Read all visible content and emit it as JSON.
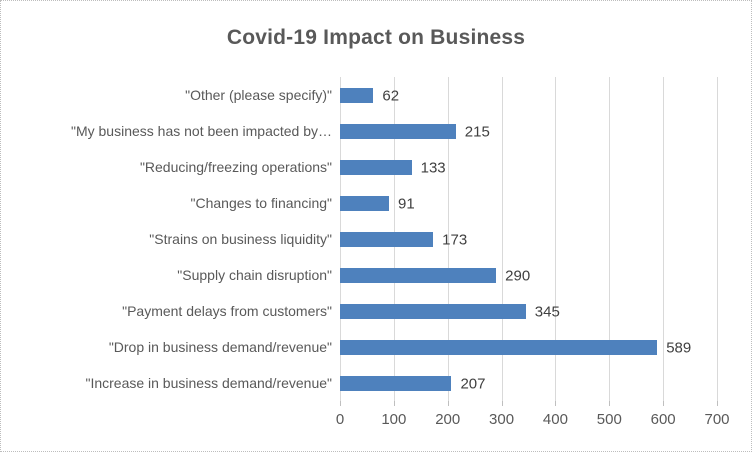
{
  "chart_data": {
    "type": "bar",
    "orientation": "horizontal",
    "title": "Covid-19 Impact on Business",
    "categories": [
      "\"Other (please specify)\"",
      "\"My business has not been impacted by…",
      "\"Reducing/freezing operations\"",
      "\"Changes to financing\"",
      "\"Strains on business liquidity\"",
      "\"Supply chain disruption\"",
      "\"Payment delays from customers\"",
      "\"Drop in business demand/revenue\"",
      "\"Increase in business demand/revenue\""
    ],
    "values": [
      62,
      215,
      133,
      91,
      173,
      290,
      345,
      589,
      207
    ],
    "xlabel": "",
    "ylabel": "",
    "xlim": [
      0,
      700
    ],
    "xticks": [
      0,
      100,
      200,
      300,
      400,
      500,
      600,
      700
    ],
    "grid": true,
    "legend": false,
    "data_labels_shown": true,
    "colors": {
      "bar": "#4E81BD",
      "gridline": "#D9D9D9",
      "tick_mark": "#BFBFBF",
      "title_text": "#595959",
      "category_text": "#595959",
      "value_text": "#404040",
      "axis_text": "#595959",
      "frame_border": "#BDBDBD",
      "background": "#FFFFFF"
    }
  }
}
